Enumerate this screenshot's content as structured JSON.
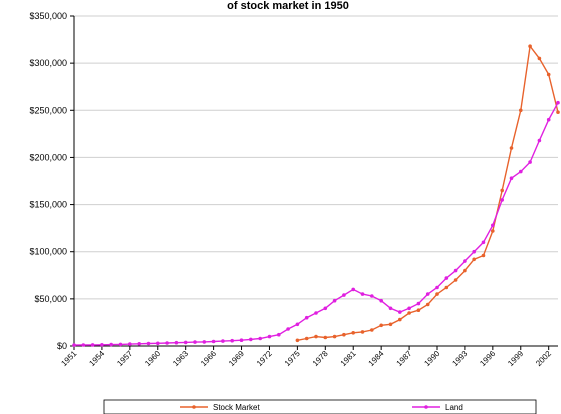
{
  "chart_data": {
    "type": "line",
    "title": "of stock market in 1950",
    "xlabel": "",
    "ylabel": "",
    "ylim": [
      0,
      350000
    ],
    "y_ticks": [
      0,
      50000,
      100000,
      150000,
      200000,
      250000,
      300000,
      350000
    ],
    "y_tick_labels": [
      "$0",
      "$50,000",
      "$100,000",
      "$150,000",
      "$200,000",
      "$250,000",
      "$300,000",
      "$350,000"
    ],
    "x_tick_labels": [
      "1951",
      "1954",
      "1957",
      "1960",
      "1963",
      "1966",
      "1969",
      "1972",
      "1975",
      "1978",
      "1981",
      "1984",
      "1987",
      "1990",
      "1993",
      "1996",
      "1999",
      "2002"
    ],
    "x_start": 1951,
    "x_end": 2003,
    "grid": true,
    "legend": "bottom",
    "colors": {
      "stock": "#e8622c",
      "land": "#e020e0"
    },
    "series": [
      {
        "name": "Stock Market",
        "color": "#e8622c",
        "x": [
          1975,
          1976,
          1977,
          1978,
          1979,
          1980,
          1981,
          1982,
          1983,
          1984,
          1985,
          1986,
          1987,
          1988,
          1989,
          1990,
          1991,
          1992,
          1993,
          1994,
          1995,
          1996,
          1997,
          1998,
          1999,
          2000,
          2001,
          2002,
          2003
        ],
        "values": [
          6000,
          8000,
          10000,
          9000,
          10000,
          12000,
          14000,
          15000,
          17000,
          22000,
          23000,
          28000,
          35000,
          38000,
          44000,
          55000,
          62000,
          70000,
          80000,
          92000,
          96000,
          122000,
          165000,
          210000,
          250000,
          318000,
          305000,
          288000,
          248000
        ]
      },
      {
        "name": "Land",
        "color": "#e020e0",
        "x": [
          1951,
          1952,
          1953,
          1954,
          1955,
          1956,
          1957,
          1958,
          1959,
          1960,
          1961,
          1962,
          1963,
          1964,
          1965,
          1966,
          1967,
          1968,
          1969,
          1970,
          1971,
          1972,
          1973,
          1974,
          1975,
          1976,
          1977,
          1978,
          1979,
          1980,
          1981,
          1982,
          1983,
          1984,
          1985,
          1986,
          1987,
          1988,
          1989,
          1990,
          1991,
          1992,
          1993,
          1994,
          1995,
          1996,
          1997,
          1998,
          1999,
          2000,
          2001,
          2002,
          2003
        ],
        "values": [
          1000,
          1100,
          1200,
          1300,
          1500,
          1700,
          2000,
          2300,
          2600,
          2900,
          3200,
          3500,
          3800,
          4100,
          4400,
          4800,
          5200,
          5600,
          6200,
          7000,
          8000,
          10000,
          12000,
          18000,
          23000,
          30000,
          35000,
          40000,
          48000,
          54000,
          60000,
          55000,
          53000,
          48000,
          40000,
          36000,
          40000,
          45000,
          55000,
          62000,
          72000,
          80000,
          90000,
          100000,
          110000,
          128000,
          155000,
          178000,
          185000,
          195000,
          218000,
          240000,
          258000
        ]
      }
    ]
  }
}
